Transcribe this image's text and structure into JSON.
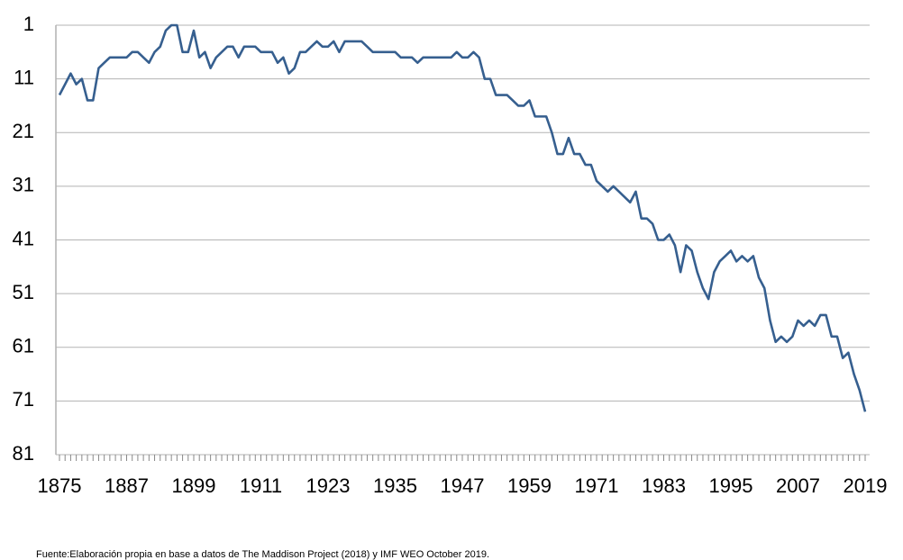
{
  "chart_data": {
    "type": "line",
    "source": "Fuente:Elaboración propia en base a datos de The Maddison Project (2018) y IMF WEO October 2019.",
    "x": [
      1875,
      1876,
      1877,
      1878,
      1879,
      1880,
      1881,
      1882,
      1883,
      1884,
      1885,
      1886,
      1887,
      1888,
      1889,
      1890,
      1891,
      1892,
      1893,
      1894,
      1895,
      1896,
      1897,
      1898,
      1899,
      1900,
      1901,
      1902,
      1903,
      1904,
      1905,
      1906,
      1907,
      1908,
      1909,
      1910,
      1911,
      1912,
      1913,
      1914,
      1915,
      1916,
      1917,
      1918,
      1919,
      1920,
      1921,
      1922,
      1923,
      1924,
      1925,
      1926,
      1927,
      1928,
      1929,
      1930,
      1931,
      1932,
      1933,
      1934,
      1935,
      1936,
      1937,
      1938,
      1939,
      1940,
      1941,
      1942,
      1943,
      1944,
      1945,
      1946,
      1947,
      1948,
      1949,
      1950,
      1951,
      1952,
      1953,
      1954,
      1955,
      1956,
      1957,
      1958,
      1959,
      1960,
      1961,
      1962,
      1963,
      1964,
      1965,
      1966,
      1967,
      1968,
      1969,
      1970,
      1971,
      1972,
      1973,
      1974,
      1975,
      1976,
      1977,
      1978,
      1979,
      1980,
      1981,
      1982,
      1983,
      1984,
      1985,
      1986,
      1987,
      1988,
      1989,
      1990,
      1991,
      1992,
      1993,
      1994,
      1995,
      1996,
      1997,
      1998,
      1999,
      2000,
      2001,
      2002,
      2003,
      2004,
      2005,
      2006,
      2007,
      2008,
      2009,
      2010,
      2011,
      2012,
      2013,
      2014,
      2015,
      2016,
      2017,
      2018,
      2019
    ],
    "series": [
      {
        "color": "#365f8f",
        "values": [
          14,
          12,
          10,
          12,
          11,
          15,
          15,
          9,
          8,
          7,
          7,
          7,
          7,
          6,
          6,
          7,
          8,
          6,
          5,
          2,
          1,
          1,
          6,
          6,
          2,
          7,
          6,
          9,
          7,
          6,
          5,
          5,
          7,
          5,
          5,
          5,
          6,
          6,
          6,
          8,
          7,
          10,
          9,
          6,
          6,
          5,
          4,
          5,
          5,
          4,
          6,
          4,
          4,
          4,
          4,
          5,
          6,
          6,
          6,
          6,
          6,
          7,
          7,
          7,
          8,
          7,
          7,
          7,
          7,
          7,
          7,
          6,
          7,
          7,
          6,
          7,
          11,
          11,
          14,
          14,
          14,
          15,
          16,
          16,
          15,
          18,
          18,
          18,
          21,
          25,
          25,
          22,
          25,
          25,
          27,
          27,
          30,
          31,
          32,
          31,
          32,
          33,
          34,
          32,
          37,
          37,
          38,
          41,
          41,
          40,
          42,
          47,
          42,
          43,
          47,
          50,
          52,
          47,
          45,
          44,
          43,
          45,
          44,
          45,
          44,
          48,
          50,
          56,
          60,
          59,
          60,
          59,
          56,
          57,
          56,
          57,
          55,
          55,
          59,
          59,
          63,
          62,
          66,
          69,
          73
        ]
      }
    ],
    "xlim": [
      1875,
      2019
    ],
    "xticks": [
      1875,
      1887,
      1899,
      1911,
      1923,
      1935,
      1947,
      1959,
      1971,
      1983,
      1995,
      2007,
      2019
    ],
    "ylim": [
      81,
      1
    ],
    "yticks": [
      1,
      11,
      21,
      31,
      41,
      51,
      61,
      71,
      81
    ],
    "y_inverted": true,
    "grid": true
  }
}
